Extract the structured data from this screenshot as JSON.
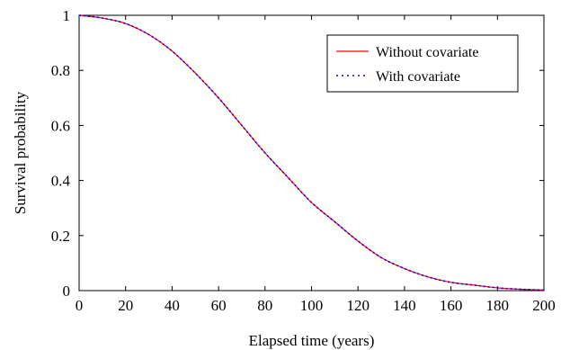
{
  "chart_data": {
    "type": "line",
    "title": "",
    "xlabel": "Elapsed time (years)",
    "ylabel": "Survival probability",
    "xlim": [
      0,
      200
    ],
    "ylim": [
      0,
      1
    ],
    "xticks": [
      0,
      20,
      40,
      60,
      80,
      100,
      120,
      140,
      160,
      180,
      200
    ],
    "yticks": [
      0,
      0.2,
      0.4,
      0.6,
      0.8,
      1
    ],
    "xtick_labels": [
      "0",
      "20",
      "40",
      "60",
      "80",
      "100",
      "120",
      "140",
      "160",
      "180",
      "200"
    ],
    "ytick_labels": [
      "0",
      "0.2",
      "0.4",
      "0.6",
      "0.8",
      "1"
    ],
    "grid": false,
    "legend_position": "top-right",
    "x": [
      0,
      10,
      20,
      30,
      40,
      50,
      60,
      70,
      80,
      90,
      100,
      110,
      120,
      130,
      140,
      150,
      160,
      170,
      180,
      190,
      200
    ],
    "series": [
      {
        "name": "Without covariate",
        "color": "#ff0000",
        "style": "solid",
        "values": [
          1.0,
          0.99,
          0.97,
          0.93,
          0.87,
          0.79,
          0.7,
          0.6,
          0.5,
          0.41,
          0.32,
          0.25,
          0.18,
          0.12,
          0.08,
          0.05,
          0.03,
          0.02,
          0.01,
          0.005,
          0.002
        ]
      },
      {
        "name": "With covariate",
        "color": "#0000ff",
        "style": "dotted",
        "values": [
          1.0,
          0.99,
          0.97,
          0.93,
          0.87,
          0.79,
          0.7,
          0.6,
          0.5,
          0.41,
          0.32,
          0.25,
          0.18,
          0.12,
          0.08,
          0.05,
          0.03,
          0.02,
          0.01,
          0.005,
          0.002
        ]
      }
    ]
  }
}
